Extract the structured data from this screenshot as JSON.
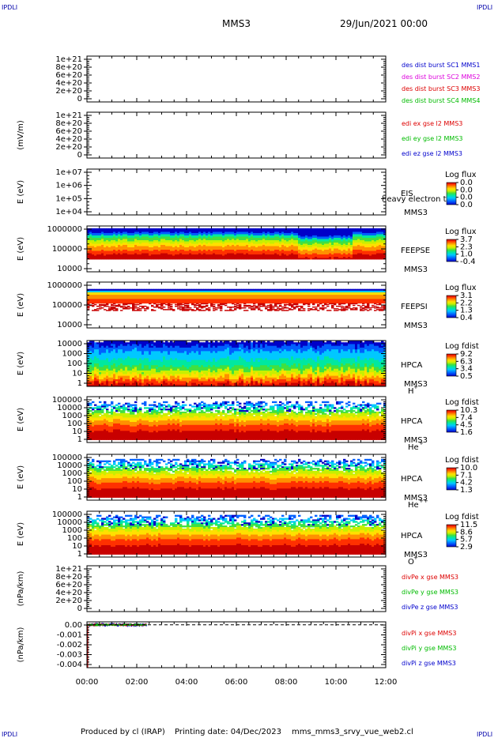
{
  "corner_marks": {
    "top_left": "IPDLI",
    "top_right": "IPDLI",
    "bottom_left": "IPDLI",
    "bottom_right": "IPDLI"
  },
  "header": {
    "spacecraft": "MMS3",
    "datetime": "29/Jun/2021 00:00"
  },
  "footer": {
    "produced_by": "Produced by cl (IRAP)",
    "printing_date": "Printing date: 04/Dec/2023",
    "script_name": "mms_mms3_srvy_vue_web2.cl"
  },
  "x_axis": {
    "range_hours": [
      0,
      12
    ],
    "tick_labels": [
      "00:00",
      "02:00",
      "04:00",
      "06:00",
      "08:00",
      "10:00",
      "12:00"
    ]
  },
  "colors": {
    "spectrum": [
      "#0000c8",
      "#0060ff",
      "#00c8ff",
      "#00e8a0",
      "#40e040",
      "#c8f000",
      "#ffe000",
      "#ff9000",
      "#ff3000",
      "#c80000"
    ]
  },
  "chart_data": [
    {
      "type": "line",
      "id": "density",
      "ylabel": "",
      "yticks": [
        "1e+21",
        "8e+20",
        "6e+20",
        "4e+20",
        "2e+20",
        "0"
      ],
      "ylim": [
        0,
        1e+21
      ],
      "dashed_zero_line": true,
      "legend": [
        {
          "label": "des dist burst SC1 MMS1",
          "color": "#0000cc"
        },
        {
          "label": "des dist burst SC2 MMS2",
          "color": "#dd00dd"
        },
        {
          "label": "des dist burst SC3 MMS3",
          "color": "#dd0000"
        },
        {
          "label": "des dist burst SC4 MMS4",
          "color": "#00bb00"
        }
      ],
      "series": []
    },
    {
      "type": "line",
      "id": "efield",
      "ylabel": "(mV/m)",
      "yticks": [
        "1e+21",
        "8e+20",
        "6e+20",
        "4e+20",
        "2e+20",
        "0"
      ],
      "ylim": [
        0,
        1e+21
      ],
      "dashed_zero_line": true,
      "legend": [
        {
          "label": "edi ex gse l2 MMS3",
          "color": "#dd0000"
        },
        {
          "label": "edi ey gse l2 MMS3",
          "color": "#00bb00"
        },
        {
          "label": "edi ez gse l2 MMS3",
          "color": "#0000cc"
        }
      ],
      "series": []
    },
    {
      "type": "heatmap",
      "id": "eis",
      "ylabel": "E (eV)",
      "yticks": [
        "1e+07",
        "1e+06",
        "1e+05",
        "1e+04"
      ],
      "log_exp_range": [
        4,
        7
      ],
      "instrument": [
        "EIS",
        "MMS3"
      ],
      "overlay_text": "heavy electron to",
      "colorbar": {
        "title": "Log flux",
        "ticks": [
          "0.0",
          "0.0",
          "0.0",
          "0.0"
        ]
      },
      "data_band": null
    },
    {
      "type": "heatmap",
      "id": "feepse",
      "ylabel": "E (eV)",
      "yticks": [
        "1000000",
        "100000",
        "10000"
      ],
      "log_exp_range": [
        4,
        6
      ],
      "instrument": [
        "FEEPSE",
        "MMS3"
      ],
      "colorbar": {
        "title": "Log flux",
        "ticks": [
          "3.7",
          "2.3",
          "1.0",
          "-0.4"
        ]
      },
      "data_band": {
        "log_e_min": 4.55,
        "log_e_max": 5.9,
        "pattern": "feeps_e"
      }
    },
    {
      "type": "heatmap",
      "id": "feepsi",
      "ylabel": "E (eV)",
      "yticks": [
        "1000000",
        "100000",
        "10000"
      ],
      "log_exp_range": [
        4,
        6
      ],
      "instrument": [
        "FEEPSI",
        "MMS3"
      ],
      "colorbar": {
        "title": "Log flux",
        "ticks": [
          "3.1",
          "2.2",
          "1.3",
          "0.4"
        ]
      },
      "data_band": {
        "log_e_min": 4.75,
        "log_e_max": 5.7,
        "pattern": "feeps_i"
      }
    },
    {
      "type": "heatmap",
      "id": "hpca_h",
      "ylabel": "E (eV)",
      "yticks": [
        "10000",
        "1000",
        "100",
        "10",
        "1"
      ],
      "log_exp_range": [
        0,
        4.3
      ],
      "instrument": [
        "HPCA",
        "MMS3"
      ],
      "species": "H",
      "species_charge": "+",
      "colorbar": {
        "title": "Log fdist",
        "ticks": [
          "9.2",
          "6.3",
          "3.4",
          "0.5"
        ]
      },
      "data_band": {
        "log_e_min": 0,
        "log_e_max": 4.3,
        "pattern": "hpca_h"
      }
    },
    {
      "type": "heatmap",
      "id": "hpca_he1",
      "ylabel": "E (eV)",
      "yticks": [
        "100000",
        "10000",
        "1000",
        "100",
        "10",
        "1"
      ],
      "log_exp_range": [
        0,
        5
      ],
      "instrument": [
        "HPCA",
        "MMS3"
      ],
      "species": "He",
      "species_charge": "+",
      "colorbar": {
        "title": "Log fdist",
        "ticks": [
          "10.3",
          "7.4",
          "4.5",
          "1.6"
        ]
      },
      "data_band": {
        "log_e_min": 0.3,
        "log_e_max": 4.5,
        "pattern": "hpca_minor"
      }
    },
    {
      "type": "heatmap",
      "id": "hpca_he2",
      "ylabel": "E (eV)",
      "yticks": [
        "100000",
        "10000",
        "1000",
        "100",
        "10",
        "1"
      ],
      "log_exp_range": [
        0,
        5
      ],
      "instrument": [
        "HPCA",
        "MMS3"
      ],
      "species": "He",
      "species_charge": "++",
      "colorbar": {
        "title": "Log fdist",
        "ticks": [
          "10.0",
          "7.1",
          "4.2",
          "1.3"
        ]
      },
      "data_band": {
        "log_e_min": 0.3,
        "log_e_max": 4.5,
        "pattern": "hpca_minor"
      }
    },
    {
      "type": "heatmap",
      "id": "hpca_o",
      "ylabel": "E (eV)",
      "yticks": [
        "100000",
        "10000",
        "1000",
        "100",
        "10",
        "1"
      ],
      "log_exp_range": [
        0,
        5
      ],
      "instrument": [
        "HPCA",
        "MMS3"
      ],
      "species": "O",
      "species_charge": "+",
      "colorbar": {
        "title": "Log fdist",
        "ticks": [
          "11.5",
          "8.6",
          "5.7",
          "2.9"
        ]
      },
      "data_band": {
        "log_e_min": 0.3,
        "log_e_max": 4.6,
        "pattern": "hpca_minor"
      }
    },
    {
      "type": "line",
      "id": "divpe",
      "ylabel": "(nPa/km)",
      "yticks": [
        "1e+21",
        "8e+20",
        "6e+20",
        "4e+20",
        "2e+20",
        "0"
      ],
      "ylim": [
        0,
        1e+21
      ],
      "dashed_zero_line": true,
      "legend": [
        {
          "label": "divPe x gse MMS3",
          "color": "#dd0000"
        },
        {
          "label": "divPe y gse MMS3",
          "color": "#00bb00"
        },
        {
          "label": "divPe z gse MMS3",
          "color": "#0000cc"
        }
      ],
      "series": []
    },
    {
      "type": "line",
      "id": "divpi",
      "ylabel": "(nPa/km)",
      "yticks": [
        "0.00",
        "-0.001",
        "-0.002",
        "-0.003",
        "-0.004"
      ],
      "ylim": [
        -0.0043,
        0.0003
      ],
      "dashed_zero_line": true,
      "legend": [
        {
          "label": "divPi x gse MMS3",
          "color": "#dd0000"
        },
        {
          "label": "divPi y gse MMS3",
          "color": "#00bb00"
        },
        {
          "label": "divPi z gse MMS3",
          "color": "#0000cc"
        }
      ],
      "series": [
        {
          "color": "#0000cc",
          "x_range_hours": [
            0,
            2.4
          ],
          "mean": 0.0,
          "noise": 0.00015,
          "initial_dip": -0.0043
        },
        {
          "color": "#dd0000",
          "x_range_hours": [
            0,
            2.4
          ],
          "mean": 0.0,
          "noise": 8e-05,
          "initial_dip": -0.0043
        },
        {
          "color": "#00bb00",
          "x_range_hours": [
            0,
            2.4
          ],
          "mean": 0.0,
          "noise": 6e-05,
          "initial_dip": null
        }
      ]
    }
  ]
}
